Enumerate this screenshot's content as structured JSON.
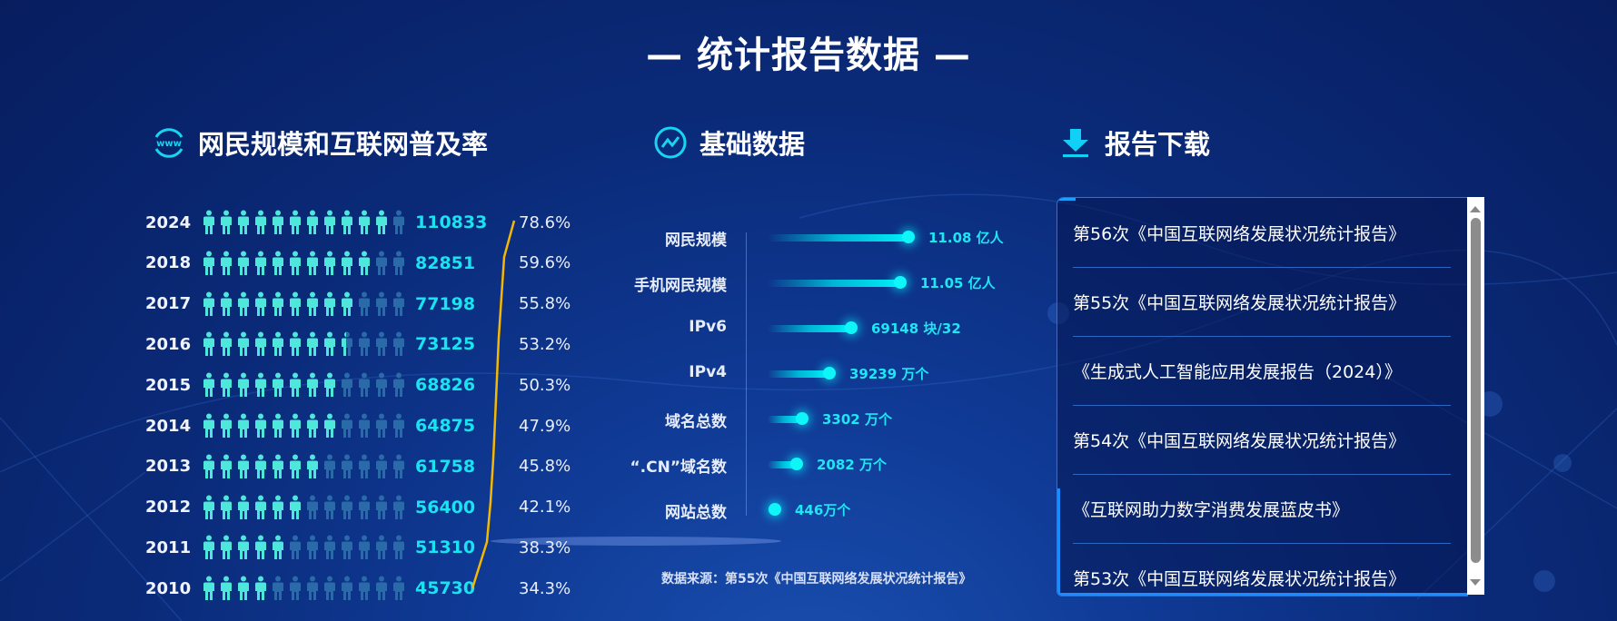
{
  "page": {
    "title": "— 统计报告数据 —"
  },
  "sections": {
    "left": {
      "title": "网民规模和互联网普及率",
      "icon": "www-icon"
    },
    "middle": {
      "title": "基础数据",
      "icon": "trend-chart-icon"
    },
    "right": {
      "title": "报告下载",
      "icon": "download-icon"
    }
  },
  "netizens": {
    "rows": [
      {
        "year": "2024",
        "value": "110833",
        "rate": "78.6%",
        "filled": 11,
        "partial": 0
      },
      {
        "year": "2018",
        "value": "82851",
        "rate": "59.6%",
        "filled": 10,
        "partial": 0
      },
      {
        "year": "2017",
        "value": "77198",
        "rate": "55.8%",
        "filled": 9,
        "partial": 0
      },
      {
        "year": "2016",
        "value": "73125",
        "rate": "53.2%",
        "filled": 8,
        "partial": 1
      },
      {
        "year": "2015",
        "value": "68826",
        "rate": "50.3%",
        "filled": 8,
        "partial": 0
      },
      {
        "year": "2014",
        "value": "64875",
        "rate": "47.9%",
        "filled": 8,
        "partial": 0
      },
      {
        "year": "2013",
        "value": "61758",
        "rate": "45.8%",
        "filled": 7,
        "partial": 0
      },
      {
        "year": "2012",
        "value": "56400",
        "rate": "42.1%",
        "filled": 6,
        "partial": 0
      },
      {
        "year": "2011",
        "value": "51310",
        "rate": "38.3%",
        "filled": 5,
        "partial": 0
      },
      {
        "year": "2010",
        "value": "45730",
        "rate": "34.3%",
        "filled": 4,
        "partial": 0
      }
    ],
    "total_icons": 12,
    "colors": {
      "filled": "#4fe6dc",
      "empty": "#2a6aa8",
      "value": "#19e3f0",
      "line": "#f5b800"
    }
  },
  "basic_data": {
    "rows": [
      {
        "label": "网民规模",
        "value": "11.08 亿人",
        "bar_len": 155
      },
      {
        "label": "手机网民规模",
        "value": "11.05 亿人",
        "bar_len": 146
      },
      {
        "label": "IPv6",
        "value": "69148 块/32",
        "bar_len": 92
      },
      {
        "label": "IPv4",
        "value": "39239 万个",
        "bar_len": 68
      },
      {
        "label": "域名总数",
        "value": "3302 万个",
        "bar_len": 38
      },
      {
        "label": "“.CN”域名数",
        "value": "2082 万个",
        "bar_len": 32
      },
      {
        "label": "网站总数",
        "value": "446万个",
        "bar_len": 8
      }
    ],
    "source": "数据来源：第55次《中国互联网络发展状况统计报告》"
  },
  "reports": {
    "items": [
      "第56次《中国互联网络发展状况统计报告》",
      "第55次《中国互联网络发展状况统计报告》",
      "《生成式人工智能应用发展报告（2024）》",
      "第54次《中国互联网络发展状况统计报告》",
      "《互联网助力数字消费发展蓝皮书》",
      "第53次《中国互联网络发展状况统计报告》"
    ]
  }
}
